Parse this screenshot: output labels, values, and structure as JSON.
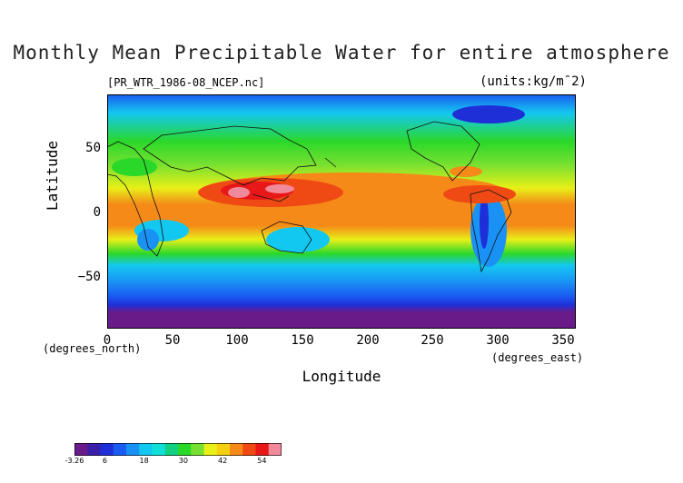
{
  "title": "Monthly Mean Precipitable Water for entire atmosphere",
  "file_label": "[PR_WTR_1986-08_NCEP.nc]",
  "units_label": "(units:kg/m¯2)",
  "axes": {
    "ylabel": "Latitude",
    "xlabel": "Longitude",
    "y_unit": "(degrees_north)",
    "x_unit": "(degrees_east)",
    "xlim": [
      0,
      360
    ],
    "ylim": [
      -90,
      90
    ],
    "y_ticks": [
      {
        "value": 50,
        "label": "50"
      },
      {
        "value": 0,
        "label": "0"
      },
      {
        "value": -50,
        "label": "−50"
      }
    ],
    "x_ticks": [
      {
        "value": 0,
        "label": "0"
      },
      {
        "value": 50,
        "label": "50"
      },
      {
        "value": 100,
        "label": "100"
      },
      {
        "value": 150,
        "label": "150"
      },
      {
        "value": 200,
        "label": "200"
      },
      {
        "value": 250,
        "label": "250"
      },
      {
        "value": 300,
        "label": "300"
      },
      {
        "value": 350,
        "label": "350"
      }
    ]
  },
  "colorbar": {
    "min": -3.26,
    "max": 60,
    "colors": [
      "#6a1b8a",
      "#3a1fa8",
      "#1f2fd8",
      "#1a5cf0",
      "#1a92f5",
      "#13c8f0",
      "#10e0d8",
      "#12d080",
      "#2ad82a",
      "#78e030",
      "#e8f018",
      "#f5d010",
      "#f58a18",
      "#f04a14",
      "#e81818",
      "#f08a9a"
    ],
    "ticks": [
      {
        "value": -3.26,
        "label": "-3.26"
      },
      {
        "value": 6,
        "label": "6"
      },
      {
        "value": 18,
        "label": "18"
      },
      {
        "value": 30,
        "label": "30"
      },
      {
        "value": 42,
        "label": "42"
      },
      {
        "value": 54,
        "label": "54"
      }
    ]
  }
}
